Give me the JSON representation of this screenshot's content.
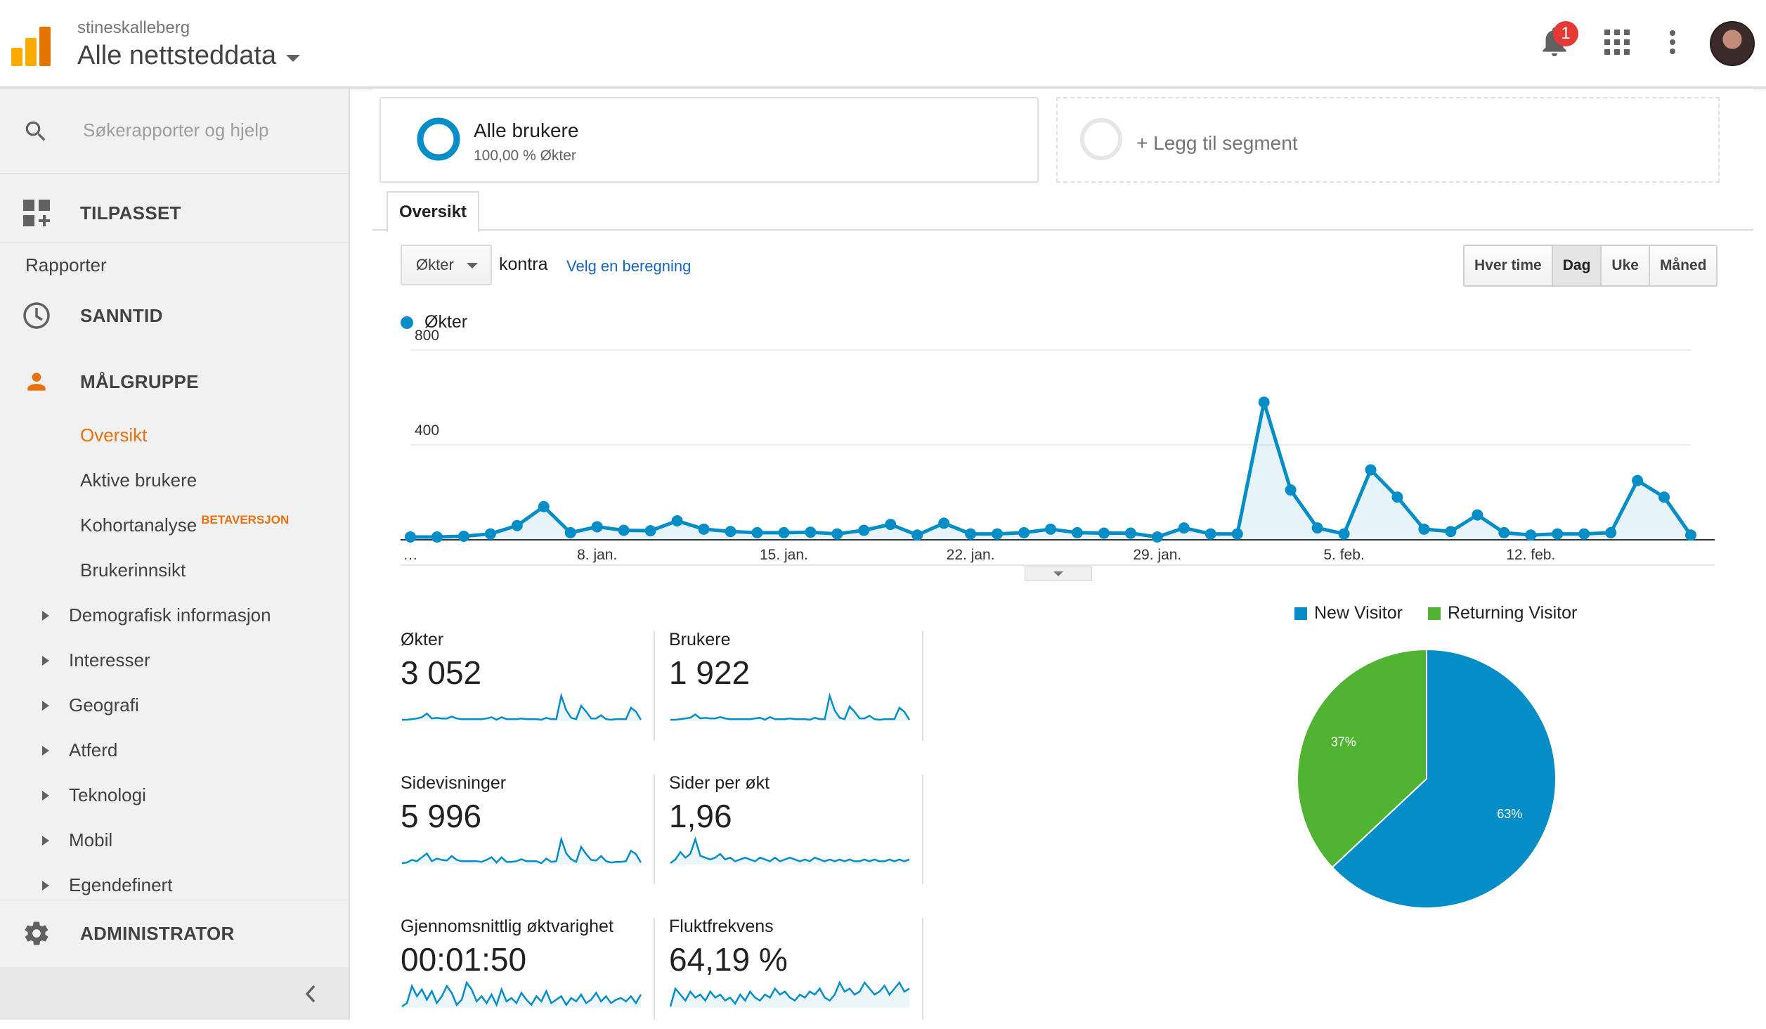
{
  "header": {
    "account": "stineskalleberg",
    "property": "Alle nettsteddata",
    "notification_count": "1"
  },
  "sidebar": {
    "search_placeholder": "Søkerapporter og hjelp",
    "customized": "TILPASSET",
    "reports_title": "Rapporter",
    "realtime": "SANNTID",
    "audience": "MÅLGRUPPE",
    "audience_items": [
      {
        "label": "Oversikt",
        "active": true
      },
      {
        "label": "Aktive brukere"
      },
      {
        "label": "Kohortanalyse",
        "badge": "BETAVERSJON"
      },
      {
        "label": "Brukerinnsikt"
      }
    ],
    "expandable_items": [
      "Demografisk informasjon",
      "Interesser",
      "Geografi",
      "Atferd",
      "Teknologi",
      "Mobil",
      "Egendefinert"
    ],
    "admin": "ADMINISTRATOR"
  },
  "segments": {
    "active_title": "Alle brukere",
    "active_subtitle": "100,00 % Økter",
    "add_label": "+ Legg til segment"
  },
  "tab": "Oversikt",
  "controls": {
    "metric": "Økter",
    "versus": "kontra",
    "select_metric": "Velg en beregning",
    "periods": [
      "Hver time",
      "Dag",
      "Uke",
      "Måned"
    ],
    "active_period": "Dag"
  },
  "colors": {
    "series": "#058dc7",
    "new_visitor": "#058dc7",
    "returning_visitor": "#50b432",
    "accent": "#e8710a"
  },
  "chart_data": [
    {
      "type": "line",
      "series": [
        {
          "name": "Økter",
          "values": [
            12,
            12,
            15,
            25,
            60,
            140,
            30,
            55,
            40,
            38,
            80,
            45,
            35,
            30,
            30,
            32,
            25,
            40,
            65,
            20,
            70,
            25,
            25,
            30,
            45,
            30,
            28,
            28,
            12,
            50,
            25,
            25,
            580,
            210,
            50,
            25,
            295,
            180,
            45,
            35,
            105,
            30,
            20,
            25,
            25,
            30,
            250,
            180,
            20
          ]
        }
      ],
      "x_tick_labels": [
        "…",
        "8. jan.",
        "15. jan.",
        "22. jan.",
        "29. jan.",
        "5. feb.",
        "12. feb."
      ],
      "y_tick_labels": [
        "800",
        "400"
      ],
      "ylim": [
        0,
        800
      ],
      "grid": true,
      "legend": "top-left"
    },
    {
      "type": "pie",
      "labels": [
        "New Visitor",
        "Returning Visitor"
      ],
      "values": [
        63,
        37
      ],
      "value_labels": [
        "63%",
        "37%"
      ],
      "legend": "top"
    }
  ],
  "scorecards": [
    {
      "label": "Økter",
      "value": "3 052",
      "spark": [
        2,
        2,
        3,
        4,
        6,
        12,
        4,
        5,
        4,
        4,
        7,
        4,
        3,
        3,
        3,
        3,
        3,
        4,
        6,
        2,
        6,
        3,
        3,
        3,
        4,
        3,
        3,
        3,
        2,
        5,
        3,
        3,
        40,
        17,
        5,
        3,
        24,
        15,
        4,
        4,
        9,
        3,
        2,
        3,
        3,
        3,
        21,
        15,
        2
      ]
    },
    {
      "label": "Brukere",
      "value": "1 922",
      "spark": [
        2,
        2,
        3,
        4,
        5,
        10,
        4,
        5,
        4,
        4,
        6,
        4,
        3,
        3,
        3,
        3,
        3,
        4,
        5,
        2,
        6,
        3,
        3,
        3,
        4,
        3,
        3,
        3,
        2,
        5,
        3,
        3,
        38,
        16,
        5,
        3,
        22,
        14,
        4,
        4,
        8,
        3,
        2,
        3,
        3,
        3,
        20,
        14,
        2
      ]
    },
    {
      "label": "Sidevisninger",
      "value": "5 996",
      "spark": [
        3,
        4,
        8,
        6,
        12,
        18,
        6,
        10,
        8,
        7,
        14,
        8,
        6,
        6,
        6,
        6,
        5,
        8,
        12,
        4,
        12,
        5,
        5,
        6,
        9,
        6,
        6,
        6,
        3,
        10,
        5,
        6,
        40,
        18,
        9,
        5,
        28,
        17,
        8,
        7,
        14,
        6,
        4,
        5,
        5,
        6,
        22,
        17,
        4
      ]
    },
    {
      "label": "Sider per økt",
      "value": "1,96",
      "spark": [
        10,
        14,
        22,
        16,
        20,
        36,
        18,
        16,
        14,
        16,
        20,
        14,
        16,
        12,
        14,
        16,
        14,
        12,
        16,
        14,
        12,
        16,
        12,
        14,
        16,
        14,
        12,
        14,
        12,
        16,
        14,
        12,
        14,
        12,
        14,
        12,
        14,
        12,
        12,
        14,
        12,
        14,
        12,
        12,
        14,
        12,
        14,
        12,
        14
      ]
    },
    {
      "label": "Gjennomsnittlig øktvarighet",
      "value": "00:01:50",
      "spark": [
        6,
        10,
        30,
        18,
        26,
        14,
        24,
        10,
        18,
        30,
        22,
        8,
        14,
        34,
        26,
        12,
        18,
        10,
        20,
        8,
        26,
        12,
        16,
        10,
        22,
        14,
        8,
        18,
        12,
        24,
        10,
        14,
        18,
        8,
        16,
        12,
        20,
        10,
        14,
        22,
        12,
        18,
        10,
        14,
        16,
        12,
        18,
        10,
        20
      ]
    },
    {
      "label": "Fluktfrekvens",
      "value": "64,19 %",
      "spark": [
        18,
        30,
        26,
        22,
        28,
        24,
        26,
        22,
        28,
        24,
        26,
        22,
        24,
        20,
        26,
        22,
        28,
        24,
        22,
        26,
        24,
        30,
        26,
        28,
        24,
        22,
        26,
        24,
        28,
        26,
        30,
        24,
        22,
        26,
        34,
        28,
        30,
        26,
        28,
        34,
        30,
        26,
        28,
        32,
        26,
        30,
        34,
        28,
        30
      ]
    }
  ]
}
